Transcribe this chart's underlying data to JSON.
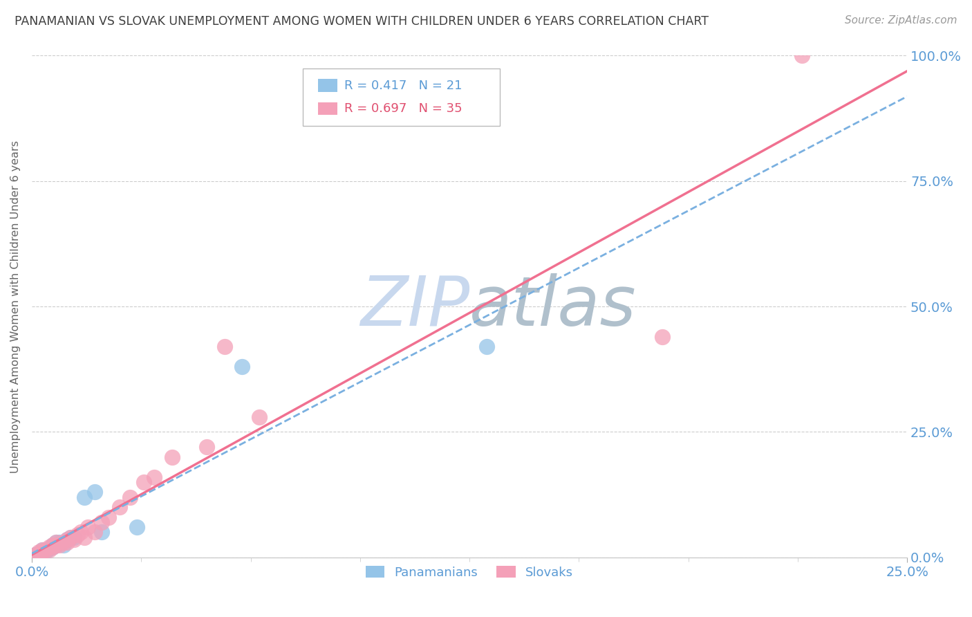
{
  "title": "PANAMANIAN VS SLOVAK UNEMPLOYMENT AMONG WOMEN WITH CHILDREN UNDER 6 YEARS CORRELATION CHART",
  "source": "Source: ZipAtlas.com",
  "ylabel_label": "Unemployment Among Women with Children Under 6 years",
  "legend_label1": "Panamanians",
  "legend_label2": "Slovaks",
  "r1": 0.417,
  "n1": 21,
  "r2": 0.697,
  "n2": 35,
  "color_panama": "#94C4E8",
  "color_slovak": "#F4A0B8",
  "color_panama_line": "#7AB0E0",
  "color_slovak_line": "#F07090",
  "color_axis_labels": "#5B9BD5",
  "color_title": "#404040",
  "color_legend_text_blue": "#5B9BD5",
  "color_legend_text_pink": "#E05070",
  "watermark_zip_color": "#C8D8EE",
  "watermark_atlas_color": "#B8C8D8",
  "panama_x": [
    0.001,
    0.002,
    0.003,
    0.003,
    0.004,
    0.005,
    0.006,
    0.006,
    0.007,
    0.007,
    0.008,
    0.009,
    0.01,
    0.011,
    0.012,
    0.015,
    0.018,
    0.02,
    0.03,
    0.06,
    0.13
  ],
  "panama_y": [
    0.005,
    0.008,
    0.01,
    0.015,
    0.012,
    0.018,
    0.02,
    0.025,
    0.025,
    0.03,
    0.03,
    0.025,
    0.035,
    0.04,
    0.04,
    0.12,
    0.13,
    0.05,
    0.06,
    0.38,
    0.42
  ],
  "slovak_x": [
    0.001,
    0.002,
    0.002,
    0.003,
    0.003,
    0.004,
    0.005,
    0.005,
    0.006,
    0.006,
    0.007,
    0.007,
    0.008,
    0.009,
    0.01,
    0.01,
    0.011,
    0.012,
    0.013,
    0.014,
    0.015,
    0.016,
    0.018,
    0.02,
    0.022,
    0.025,
    0.028,
    0.032,
    0.035,
    0.04,
    0.05,
    0.055,
    0.065,
    0.18,
    0.22
  ],
  "slovak_y": [
    0.005,
    0.005,
    0.01,
    0.01,
    0.015,
    0.015,
    0.015,
    0.02,
    0.02,
    0.025,
    0.025,
    0.03,
    0.025,
    0.03,
    0.03,
    0.035,
    0.04,
    0.035,
    0.045,
    0.05,
    0.04,
    0.06,
    0.05,
    0.07,
    0.08,
    0.1,
    0.12,
    0.15,
    0.16,
    0.2,
    0.22,
    0.42,
    0.28,
    0.44,
    1.0
  ],
  "xlim": [
    0,
    0.25
  ],
  "ylim": [
    0,
    1.0
  ],
  "yticks": [
    0.0,
    0.25,
    0.5,
    0.75,
    1.0
  ],
  "xticks": [
    0.0,
    0.25
  ]
}
